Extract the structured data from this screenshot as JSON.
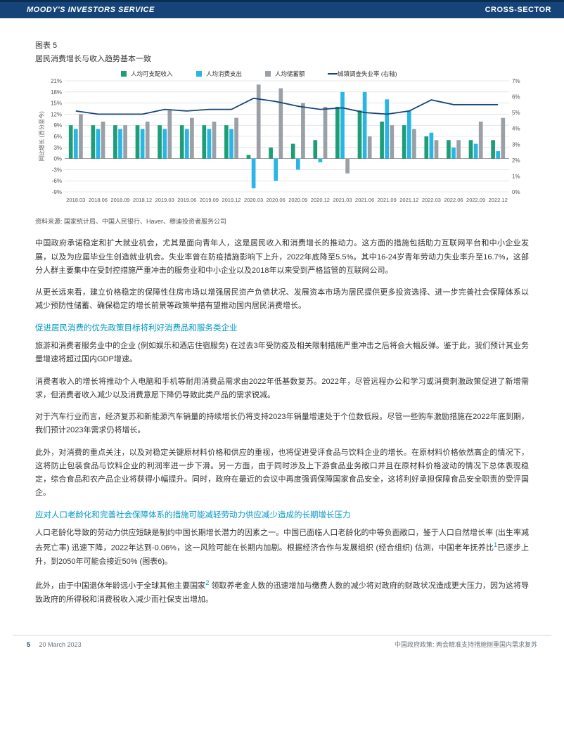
{
  "header": {
    "left": "MOODY'S INVESTORS SERVICE",
    "right": "CROSS-SECTOR",
    "bg": "#164478"
  },
  "figure": {
    "label": "图表 5",
    "title": "居民消费增长与收入趋势基本一致",
    "source": "资料来源: 国家统计局、中国人民银行、Haver、穆迪投资者服务公司",
    "legend": {
      "s1": "人均可支配收入",
      "s2": "人均消费支出",
      "s3": "人均储蓄额",
      "s4": "城镇调查失业率 (右轴)"
    },
    "colors": {
      "s1": "#1e9e77",
      "s2": "#29b6e6",
      "s3": "#9aa0a6",
      "s4": "#164478",
      "grid": "#d0d4d8",
      "bg": "#ffffff",
      "axis_text": "#555555"
    },
    "y_left": {
      "label": "同比增长 (百分至今)",
      "min": -9,
      "max": 21,
      "ticks": [
        -9,
        -6,
        -3,
        0,
        3,
        6,
        9,
        12,
        15,
        18,
        21
      ]
    },
    "y_right": {
      "min": 0,
      "max": 7,
      "ticks": [
        0,
        1,
        2,
        3,
        4,
        5,
        6,
        7
      ]
    },
    "x_labels": [
      "2018.03",
      "2018.06",
      "2018.09",
      "2018.12",
      "2019.03",
      "2019.06",
      "2019.09",
      "2019.12",
      "2020.03",
      "2020.06",
      "2020.09",
      "2020.12",
      "2021.03",
      "2021.06",
      "2021.09",
      "2021.12",
      "2022.03",
      "2022.06",
      "2022.09",
      "2022.12"
    ],
    "bars": {
      "s1": [
        9,
        9,
        9,
        9,
        9,
        9,
        9,
        9,
        1,
        3,
        4,
        5,
        14,
        13,
        10,
        9,
        6,
        5,
        5,
        5
      ],
      "s2": [
        8,
        8,
        8,
        8,
        8,
        8,
        8,
        8,
        -8,
        -6,
        -3,
        -1,
        18,
        18,
        16,
        13,
        7,
        3,
        4,
        2
      ],
      "s3": [
        12,
        10,
        9,
        10,
        13,
        11,
        10,
        11,
        20,
        19,
        15,
        14,
        -4,
        6,
        9,
        8,
        5,
        5,
        10,
        11
      ]
    },
    "line_s4": [
      5.1,
      4.9,
      4.9,
      4.9,
      5.2,
      5.1,
      5.2,
      5.2,
      5.9,
      5.7,
      5.4,
      5.2,
      5.3,
      5.0,
      4.9,
      5.1,
      5.8,
      5.5,
      5.5,
      5.5
    ]
  },
  "body": {
    "p1": "中国政府承诺稳定和扩大就业机会，尤其是面向青年人，这是居民收入和消费增长的推动力。这方面的措施包括助力互联网平台和中小企业发展，以及为应届毕业生创造就业机会。失业率曾在防疫措施影响下上升，2022年底降至5.5%。其中16-24岁青年劳动力失业率升至16.7%，这部分人群主要集中在受封控措施严重冲击的服务业和中小企业以及2018年以来受到严格监管的互联网公司。",
    "p2": "从更长远来看，建立价格稳定的保障性住房市场以增强居民资产负债状况、发展资本市场为居民提供更多投资选择、进一步完善社会保障体系以减少预防性储蓄、确保稳定的增长前景等政策举措有望推动国内居民消费增长。",
    "h1": "促进居民消费的优先政策目标将利好消费品和服务类企业",
    "p3": "旅游和消费者服务业中的企业 (例如娱乐和酒店住宿服务) 在过去3年受防疫及相关限制措施严重冲击之后将会大幅反弹。鉴于此，我们预计其业务量增速将超过国内GDP增速。",
    "p4": "消费者收入的增长将推动个人电脑和手机等耐用消费品需求由2022年低基数复苏。2022年，尽管远程办公和学习或消费刺激政策促进了新增需求，但消费者收入减少以及消费意愿下降仍导致此类产品的需求锐减。",
    "p5": "对于汽车行业而言，经济复苏和新能源汽车销量的持续增长仍将支持2023年销量增速处于个位数低段。尽管一些购车激励措施在2022年底到期，我们预计2023年需求仍将增长。",
    "p6": "此外，对消费的重点关注，以及对稳定关键原材料价格和供应的重视，也将促进受评食品与饮料企业的增长。在原材料价格依然高企的情况下，这将防止包装食品与饮料企业的利润率进一步下滑。另一方面，由于同时涉及上下游食品业务敞口并且在原材料价格波动的情况下总体表现稳定，综合食品和农产品企业将获得小幅提升。同时，政府在最近的会议中再度强调保障国家食品安全，这将利好承担保障食品安全职责的受评国企。",
    "h2": "应对人口老龄化和完善社会保障体系的措施可能减轻劳动力供应减少造成的长期增长压力",
    "p7a": "人口老龄化导致的劳动力供应短缺是制约中国长期增长潜力的因素之一。中国已面临人口老龄化的中等负面敞口，鉴于人口自然增长率 (出生率减去死亡率) 迅速下降，2022年达到-0.06%，这一风险可能在长期内加剧。根据经济合作与发展组织 (经合组织) 估测，中国老年抚养比",
    "fn1": "1",
    "p7b": "已逐步上升，到2050年可能会接近50% (图表6)。",
    "p8a": "此外，由于中国退休年龄远小于全球其他主要国家",
    "fn2": "2",
    "p8b": " 领取养老金人数的迅速增加与缴费人数的减少将对政府的财政状况造成更大压力，因为这将导致政府的所得税和消费税收入减少而社保支出增加。"
  },
  "footer": {
    "page": "5",
    "date": "20 March 2023",
    "right": "中国政府政策: 两会精准支持措施侧重国内需求复苏"
  }
}
